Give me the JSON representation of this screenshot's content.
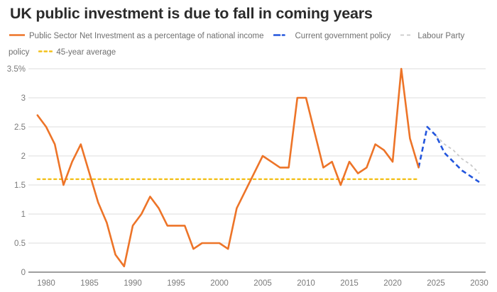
{
  "title": "UK public investment is due to fall in coming years",
  "legend": {
    "items": [
      {
        "id": "psni",
        "label": "Public Sector Net Investment as a percentage of national income",
        "color": "#ED7428",
        "style": "solid"
      },
      {
        "id": "current-policy",
        "label": "Current government policy",
        "color": "#2356DD",
        "style": "dashed"
      },
      {
        "id": "labour-policy",
        "label": "Labour Party policy",
        "color": "#C9C9C9",
        "style": "dashed-fine"
      },
      {
        "id": "average",
        "label": "45-year average",
        "color": "#F3C019",
        "style": "dashed-dot"
      }
    ]
  },
  "chart_data": {
    "type": "line",
    "title": "UK public investment is due to fall in coming years",
    "xlabel": "",
    "ylabel": "",
    "xlim": [
      1978.5,
      2030.8
    ],
    "ylim": [
      0,
      3.5
    ],
    "grid": true,
    "legend_position": "top",
    "x_ticks": [
      1980,
      1985,
      1990,
      1995,
      2000,
      2005,
      2010,
      2015,
      2020,
      2025,
      2030
    ],
    "y_ticks": [
      {
        "value": 3.5,
        "label": "3.5%"
      },
      {
        "value": 3,
        "label": "3"
      },
      {
        "value": 2.5,
        "label": "2.5"
      },
      {
        "value": 2,
        "label": "2"
      },
      {
        "value": 1.5,
        "label": "1.5"
      },
      {
        "value": 1,
        "label": "1"
      },
      {
        "value": 0.5,
        "label": "0.5"
      },
      {
        "value": 0,
        "label": "0"
      }
    ],
    "series": [
      {
        "id": "psni",
        "name": "Public Sector Net Investment as a percentage of national income",
        "color": "#ED7428",
        "style": "solid",
        "x": [
          1979,
          1980,
          1981,
          1982,
          1983,
          1984,
          1985,
          1986,
          1987,
          1988,
          1989,
          1990,
          1991,
          1992,
          1993,
          1994,
          1995,
          1996,
          1997,
          1998,
          1999,
          2000,
          2001,
          2002,
          2003,
          2004,
          2005,
          2006,
          2007,
          2008,
          2009,
          2010,
          2011,
          2012,
          2013,
          2014,
          2015,
          2016,
          2017,
          2018,
          2019,
          2020,
          2021,
          2022,
          2023
        ],
        "values": [
          2.7,
          2.5,
          2.2,
          1.5,
          1.9,
          2.2,
          1.7,
          1.2,
          0.85,
          0.3,
          0.1,
          0.8,
          1.0,
          1.3,
          1.1,
          0.8,
          0.8,
          0.8,
          0.4,
          0.5,
          0.5,
          0.5,
          0.4,
          1.1,
          1.4,
          1.7,
          2.0,
          1.9,
          1.8,
          1.8,
          3.0,
          3.0,
          2.4,
          1.8,
          1.9,
          1.5,
          1.9,
          1.7,
          1.8,
          2.2,
          2.1,
          1.9,
          3.5,
          2.3,
          1.8
        ]
      },
      {
        "id": "current-policy",
        "name": "Current government policy",
        "color": "#2356DD",
        "style": "dashed",
        "x": [
          2023,
          2024,
          2025,
          2026,
          2027,
          2028,
          2029,
          2030
        ],
        "values": [
          1.8,
          2.5,
          2.35,
          2.05,
          1.9,
          1.75,
          1.65,
          1.55
        ]
      },
      {
        "id": "labour-policy",
        "name": "Labour Party policy",
        "color": "#C9C9C9",
        "style": "dashed-fine",
        "x": [
          2025,
          2026,
          2027,
          2028,
          2029,
          2030
        ],
        "values": [
          2.35,
          2.2,
          2.1,
          1.95,
          1.85,
          1.7
        ]
      },
      {
        "id": "average",
        "name": "45-year average",
        "color": "#F3C019",
        "style": "dashed-dot",
        "x": [
          1979,
          2023
        ],
        "values": [
          1.6,
          1.6
        ]
      }
    ]
  }
}
